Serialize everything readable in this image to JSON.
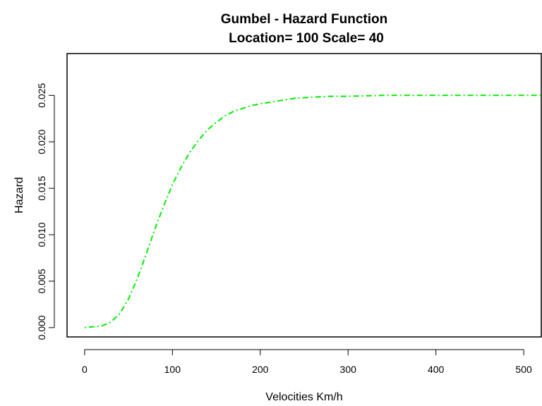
{
  "chart_data": {
    "type": "line",
    "title": "Gumbel - Hazard Function",
    "subtitle": "Location= 100  Scale= 40",
    "xlabel": "Velocities Km/h",
    "ylabel": "Hazard",
    "xlim": [
      -20,
      520
    ],
    "ylim": [
      -0.001,
      0.0295
    ],
    "x_ticks": [
      0,
      100,
      200,
      300,
      400,
      500
    ],
    "x_tick_labels": [
      "0",
      "100",
      "200",
      "300",
      "400",
      "500"
    ],
    "y_ticks": [
      0.0,
      0.005,
      0.01,
      0.015,
      0.02,
      0.025
    ],
    "y_tick_labels": [
      "0.000",
      "0.005",
      "0.010",
      "0.015",
      "0.020",
      "0.025"
    ],
    "grid": false,
    "series": [
      {
        "color": "#00ee00",
        "line_style": "dot-dash",
        "x": [
          0,
          10,
          20,
          30,
          40,
          50,
          60,
          70,
          80,
          90,
          100,
          110,
          120,
          130,
          140,
          150,
          160,
          170,
          180,
          190,
          200,
          220,
          240,
          260,
          280,
          300,
          340,
          380,
          420,
          460,
          500,
          520
        ],
        "y": [
          0.0,
          0.0001,
          0.0002,
          0.0006,
          0.0015,
          0.0031,
          0.0053,
          0.0079,
          0.0106,
          0.0131,
          0.0154,
          0.0173,
          0.0189,
          0.0202,
          0.0213,
          0.0221,
          0.0228,
          0.0233,
          0.0236,
          0.0239,
          0.0241,
          0.0244,
          0.0247,
          0.0248,
          0.0249,
          0.0249,
          0.025,
          0.025,
          0.025,
          0.025,
          0.025,
          0.025
        ]
      }
    ]
  }
}
